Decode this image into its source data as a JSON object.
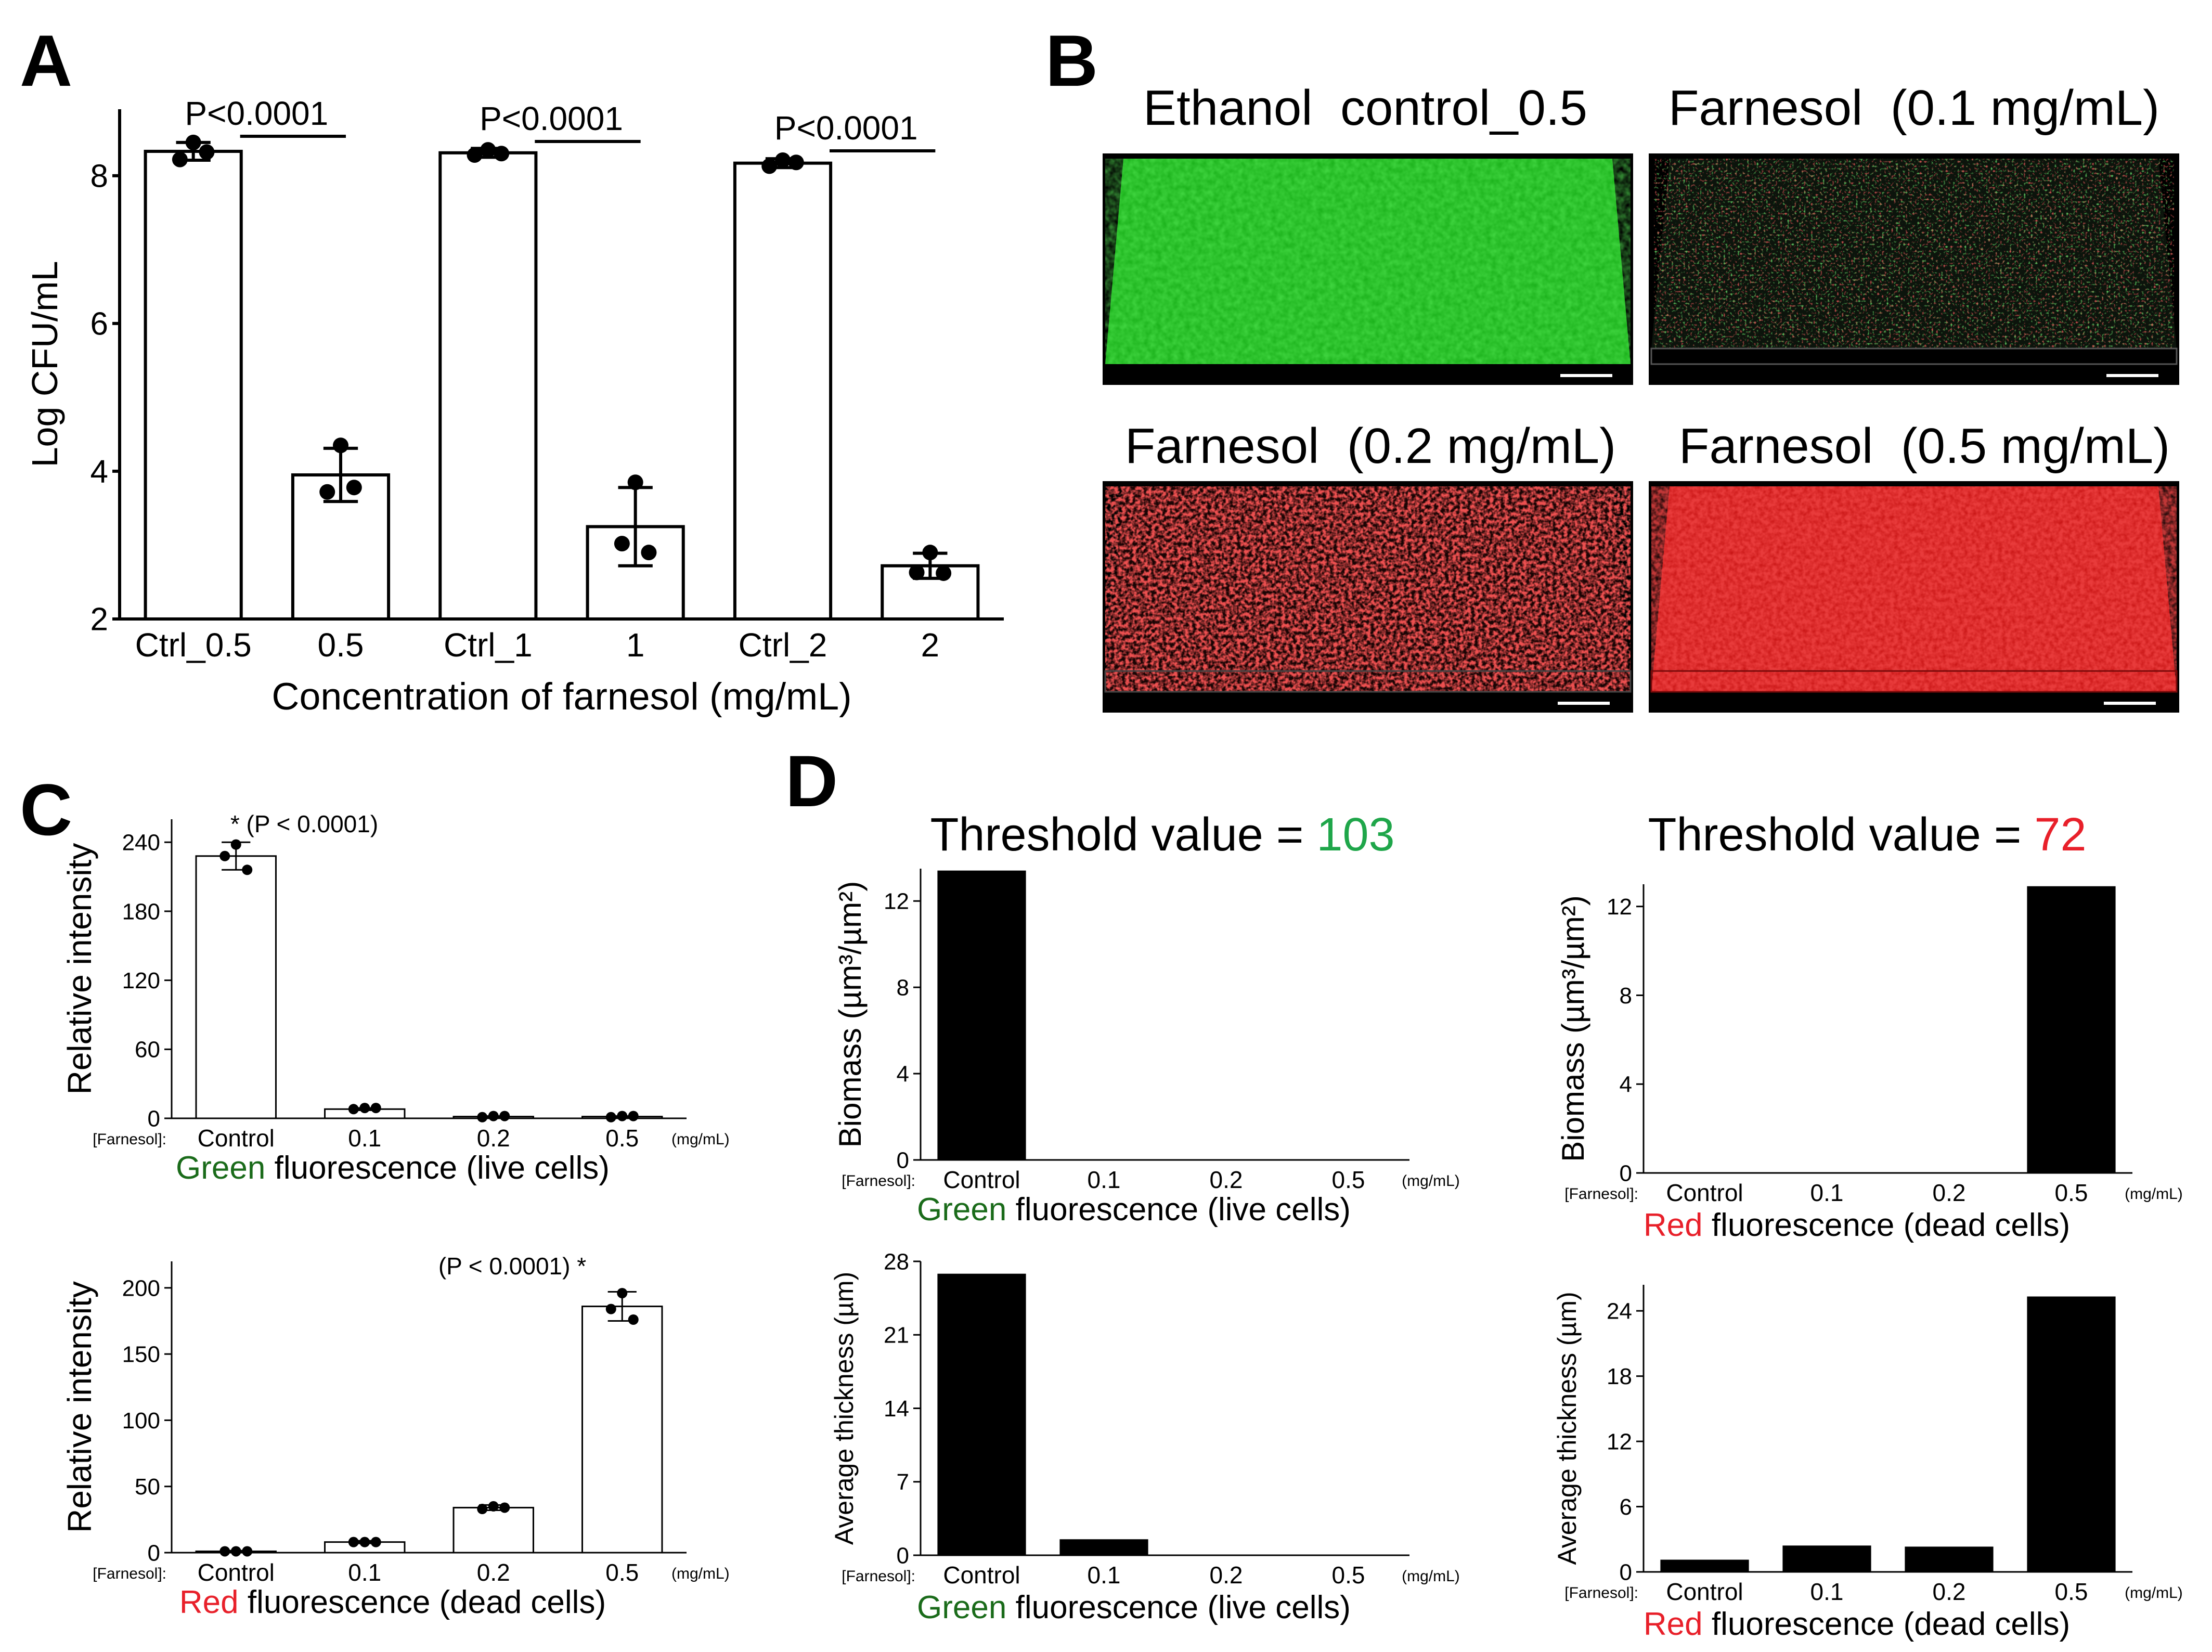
{
  "panel_labels": {
    "A": "A",
    "B": "B",
    "C": "C",
    "D": "D"
  },
  "colors": {
    "green_text": "#1a6b1a",
    "red_text": "#e8202a",
    "green_threshold": "#1fa64a",
    "red_threshold": "#e8202a",
    "bar_fill_open": "#ffffff",
    "bar_fill_solid": "#000000",
    "green_fluor": "#2fd82f",
    "red_fluor": "#d81e1e"
  },
  "chart_data": [
    {
      "id": "A",
      "type": "bar",
      "categories": [
        "Ctrl_0.5",
        "0.5",
        "Ctrl_1",
        "1",
        "Ctrl_2",
        "2"
      ],
      "values": [
        8.33,
        3.95,
        8.31,
        3.25,
        8.17,
        2.72
      ],
      "errors": [
        0.12,
        0.36,
        0.06,
        0.53,
        0.06,
        0.17
      ],
      "points": [
        [
          8.45,
          8.22,
          8.32
        ],
        [
          4.35,
          3.72,
          3.78
        ],
        [
          8.35,
          8.28,
          8.3
        ],
        [
          3.85,
          3.02,
          2.9
        ],
        [
          8.21,
          8.13,
          8.18
        ],
        [
          2.9,
          2.63,
          2.62
        ]
      ],
      "ylabel": "Log CFU/mL",
      "xlabel": "Concentration of farnesol (mg/mL)",
      "ylim": [
        2,
        8.9
      ],
      "yticks": [
        "2",
        "4",
        "6",
        "8"
      ],
      "comparisons": [
        "P<0.0001",
        "P<0.0001",
        "P<0.0001"
      ]
    },
    {
      "id": "C-top",
      "type": "bar",
      "categories": [
        "Control",
        "0.1",
        "0.2",
        "0.5"
      ],
      "values": [
        228,
        8,
        1.5,
        1.5
      ],
      "errors": [
        12,
        1,
        0.5,
        0.5
      ],
      "points": [
        [
          238,
          228,
          216
        ],
        [
          9,
          8,
          9
        ],
        [
          2,
          1,
          2
        ],
        [
          2,
          1,
          2
        ]
      ],
      "ylabel": "Relative intensity",
      "ylim": [
        0,
        260
      ],
      "yticks": [
        "0",
        "60",
        "120",
        "180",
        "240"
      ],
      "prefix": "[Farnesol]:",
      "unit": "(mg/mL)",
      "annotation": "* (P < 0.0001)",
      "caption_color_word": "Green",
      "caption_rest": " fluorescence (live cells)"
    },
    {
      "id": "C-bottom",
      "type": "bar",
      "categories": [
        "Control",
        "0.1",
        "0.2",
        "0.5"
      ],
      "values": [
        1,
        8,
        34,
        186
      ],
      "errors": [
        0.5,
        1,
        2,
        11
      ],
      "points": [
        [
          1,
          1,
          1
        ],
        [
          8,
          8,
          8
        ],
        [
          35,
          33,
          34
        ],
        [
          196,
          184,
          176
        ]
      ],
      "ylabel": "Relative intensity",
      "ylim": [
        0,
        220
      ],
      "yticks": [
        "0",
        "50",
        "100",
        "150",
        "200"
      ],
      "prefix": "[Farnesol]:",
      "unit": "(mg/mL)",
      "annotation": "(P < 0.0001) *",
      "caption_color_word": "Red",
      "caption_rest": " fluorescence (dead cells)"
    },
    {
      "id": "D-green-biomass",
      "type": "bar",
      "title_prefix": "Threshold value = ",
      "title_value": "103",
      "categories": [
        "Control",
        "0.1",
        "0.2",
        "0.5"
      ],
      "values": [
        13.4,
        0,
        0,
        0
      ],
      "ylabel": "Biomass (µm³/µm²)",
      "ylim": [
        0,
        13.5
      ],
      "yticks": [
        "0",
        "4",
        "8",
        "12"
      ],
      "prefix": "[Farnesol]:",
      "unit": "(mg/mL)",
      "caption_color_word": "Green",
      "caption_rest": " fluorescence (live cells)"
    },
    {
      "id": "D-red-biomass",
      "type": "bar",
      "title_prefix": "Threshold value = ",
      "title_value": "72",
      "categories": [
        "Control",
        "0.1",
        "0.2",
        "0.5"
      ],
      "values": [
        0,
        0,
        0,
        12.9
      ],
      "ylabel": "Biomass (µm³/µm²)",
      "ylim": [
        0,
        13
      ],
      "yticks": [
        "0",
        "4",
        "8",
        "12"
      ],
      "prefix": "[Farnesol]:",
      "unit": "(mg/mL)",
      "caption_color_word": "Red",
      "caption_rest": " fluorescence (dead cells)"
    },
    {
      "id": "D-green-thickness",
      "type": "bar",
      "categories": [
        "Control",
        "0.1",
        "0.2",
        "0.5"
      ],
      "values": [
        26.8,
        1.5,
        0,
        0
      ],
      "ylabel": "Average thickness (µm)",
      "ylim": [
        0,
        28
      ],
      "yticks": [
        "0",
        "7",
        "14",
        "21",
        "28"
      ],
      "prefix": "[Farnesol]:",
      "unit": "(mg/mL)",
      "caption_color_word": "Green",
      "caption_rest": " fluorescence (live cells)"
    },
    {
      "id": "D-red-thickness",
      "type": "bar",
      "categories": [
        "Control",
        "0.1",
        "0.2",
        "0.5"
      ],
      "values": [
        1.1,
        2.4,
        2.3,
        25.3
      ],
      "ylabel": "Average thickness (µm)",
      "ylim": [
        0,
        26.4
      ],
      "yticks": [
        "0",
        "6",
        "12",
        "18",
        "24"
      ],
      "prefix": "[Farnesol]:",
      "unit": "(mg/mL)",
      "caption_color_word": "Red",
      "caption_rest": " fluorescence (dead cells)"
    }
  ],
  "panelB": {
    "images": [
      {
        "title": "Ethanol  control_0.5"
      },
      {
        "title": "Farnesol  (0.1 mg/mL)"
      },
      {
        "title": "Farnesol  (0.2 mg/mL)"
      },
      {
        "title": "Farnesol  (0.5 mg/mL)"
      }
    ]
  }
}
